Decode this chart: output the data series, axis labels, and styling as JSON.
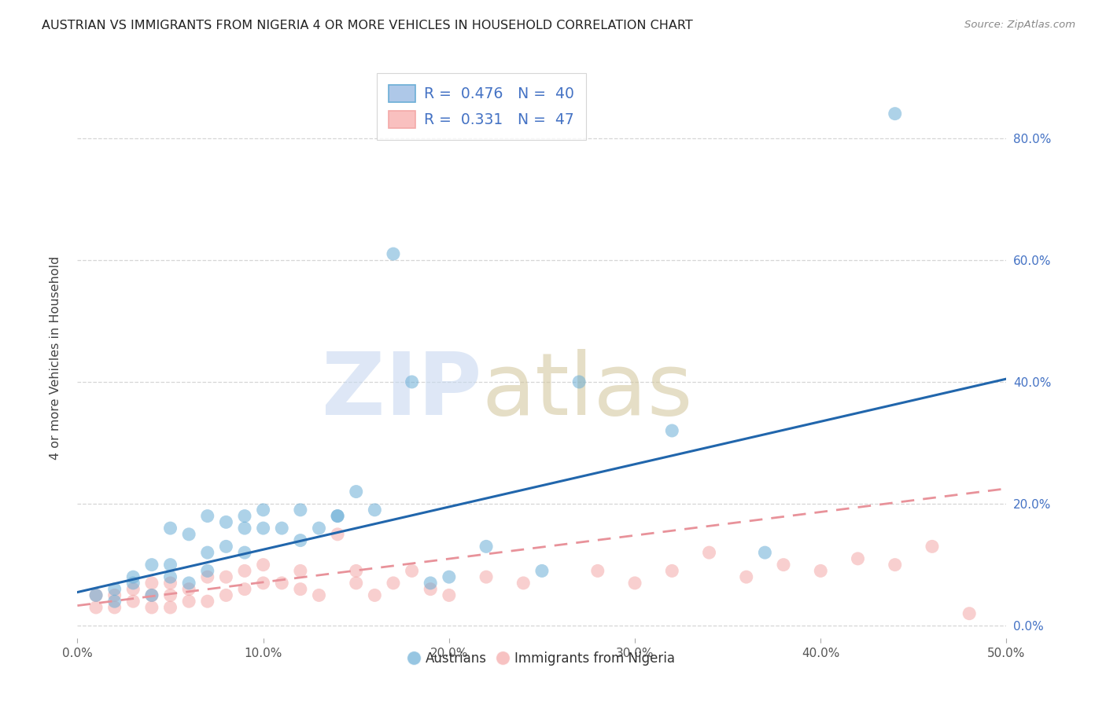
{
  "title": "AUSTRIAN VS IMMIGRANTS FROM NIGERIA 4 OR MORE VEHICLES IN HOUSEHOLD CORRELATION CHART",
  "source": "Source: ZipAtlas.com",
  "ylabel": "4 or more Vehicles in Household",
  "xlim": [
    0.0,
    0.5
  ],
  "ylim": [
    -0.02,
    0.9
  ],
  "xticks": [
    0.0,
    0.1,
    0.2,
    0.3,
    0.4,
    0.5
  ],
  "yticks": [
    0.0,
    0.2,
    0.4,
    0.6,
    0.8
  ],
  "xtick_labels": [
    "0.0%",
    "10.0%",
    "20.0%",
    "30.0%",
    "40.0%",
    "50.0%"
  ],
  "ytick_labels": [
    "0.0%",
    "20.0%",
    "40.0%",
    "60.0%",
    "80.0%"
  ],
  "austrians_color": "#6baed6",
  "nigeria_color": "#f4a9a8",
  "blue_line_color": "#2166ac",
  "pink_line_color": "#e8929a",
  "austrians_x": [
    0.01,
    0.02,
    0.02,
    0.03,
    0.03,
    0.04,
    0.04,
    0.05,
    0.05,
    0.05,
    0.06,
    0.06,
    0.07,
    0.07,
    0.07,
    0.08,
    0.08,
    0.09,
    0.09,
    0.09,
    0.1,
    0.1,
    0.11,
    0.12,
    0.12,
    0.13,
    0.14,
    0.14,
    0.15,
    0.16,
    0.17,
    0.18,
    0.19,
    0.2,
    0.22,
    0.25,
    0.27,
    0.32,
    0.37,
    0.44
  ],
  "austrians_y": [
    0.05,
    0.04,
    0.06,
    0.07,
    0.08,
    0.05,
    0.1,
    0.08,
    0.1,
    0.16,
    0.07,
    0.15,
    0.09,
    0.12,
    0.18,
    0.13,
    0.17,
    0.12,
    0.16,
    0.18,
    0.16,
    0.19,
    0.16,
    0.14,
    0.19,
    0.16,
    0.18,
    0.18,
    0.22,
    0.19,
    0.61,
    0.4,
    0.07,
    0.08,
    0.13,
    0.09,
    0.4,
    0.32,
    0.12,
    0.84
  ],
  "nigeria_x": [
    0.01,
    0.01,
    0.02,
    0.02,
    0.03,
    0.03,
    0.04,
    0.04,
    0.04,
    0.05,
    0.05,
    0.05,
    0.06,
    0.06,
    0.07,
    0.07,
    0.08,
    0.08,
    0.09,
    0.09,
    0.1,
    0.1,
    0.11,
    0.12,
    0.12,
    0.13,
    0.14,
    0.15,
    0.15,
    0.16,
    0.17,
    0.18,
    0.19,
    0.2,
    0.22,
    0.24,
    0.28,
    0.3,
    0.32,
    0.34,
    0.36,
    0.38,
    0.4,
    0.42,
    0.44,
    0.46,
    0.48
  ],
  "nigeria_y": [
    0.03,
    0.05,
    0.03,
    0.05,
    0.04,
    0.06,
    0.03,
    0.05,
    0.07,
    0.03,
    0.05,
    0.07,
    0.04,
    0.06,
    0.04,
    0.08,
    0.05,
    0.08,
    0.06,
    0.09,
    0.07,
    0.1,
    0.07,
    0.06,
    0.09,
    0.05,
    0.15,
    0.07,
    0.09,
    0.05,
    0.07,
    0.09,
    0.06,
    0.05,
    0.08,
    0.07,
    0.09,
    0.07,
    0.09,
    0.12,
    0.08,
    0.1,
    0.09,
    0.11,
    0.1,
    0.13,
    0.02
  ],
  "blue_line_x": [
    0.0,
    0.5
  ],
  "blue_line_y": [
    0.055,
    0.405
  ],
  "pink_line_x": [
    0.0,
    0.5
  ],
  "pink_line_y": [
    0.033,
    0.225
  ],
  "R_austrians": "0.476",
  "N_austrians": "40",
  "R_nigeria": "0.331",
  "N_nigeria": "47"
}
